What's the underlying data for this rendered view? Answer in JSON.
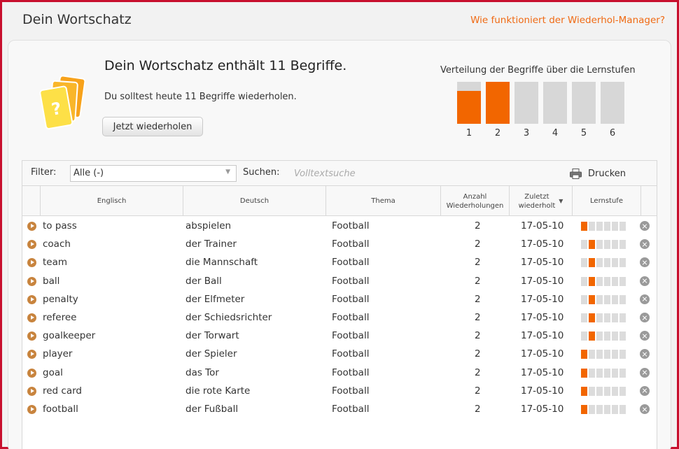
{
  "header": {
    "title": "Dein Wortschatz",
    "help_link": "Wie funktioniert der Wiederhol-Manager?"
  },
  "summary": {
    "headline": "Dein Wortschatz enthält 11 Begriffe.",
    "subline": "Du solltest heute 11 Begriffe wiederholen.",
    "review_button": "Jetzt wiederholen",
    "icon": "question-cards-icon"
  },
  "distribution": {
    "title": "Verteilung der Begriffe über die Lernstufen",
    "stages": [
      "1",
      "2",
      "3",
      "4",
      "5",
      "6"
    ],
    "fill": [
      0.78,
      1.0,
      0,
      0,
      0,
      0
    ],
    "colors": {
      "fill": "#f26600",
      "empty": "#d7d7d7"
    }
  },
  "toolbar": {
    "filter_label": "Filter:",
    "filter_value": "Alle (-)",
    "search_label": "Suchen:",
    "search_placeholder": "Volltextsuche",
    "print_label": "Drucken",
    "print_icon": "printer-icon"
  },
  "table": {
    "headers": {
      "english": "Englisch",
      "german": "Deutsch",
      "topic": "Thema",
      "count_line1": "Anzahl",
      "count_line2": "Wiederholungen",
      "last_line1": "Zuletzt",
      "last_line2": "wiederholt",
      "stage": "Lernstufe"
    },
    "rows": [
      {
        "en": "to pass",
        "de": "abspielen",
        "topic": "Football",
        "count": "2",
        "date": "17-05-10",
        "stage": 1
      },
      {
        "en": "coach",
        "de": "der Trainer",
        "topic": "Football",
        "count": "2",
        "date": "17-05-10",
        "stage": 2
      },
      {
        "en": "team",
        "de": "die Mannschaft",
        "topic": "Football",
        "count": "2",
        "date": "17-05-10",
        "stage": 2
      },
      {
        "en": "ball",
        "de": "der Ball",
        "topic": "Football",
        "count": "2",
        "date": "17-05-10",
        "stage": 2
      },
      {
        "en": "penalty",
        "de": "der Elfmeter",
        "topic": "Football",
        "count": "2",
        "date": "17-05-10",
        "stage": 2
      },
      {
        "en": "referee",
        "de": "der Schiedsrichter",
        "topic": "Football",
        "count": "2",
        "date": "17-05-10",
        "stage": 2
      },
      {
        "en": "goalkeeper",
        "de": "der Torwart",
        "topic": "Football",
        "count": "2",
        "date": "17-05-10",
        "stage": 2
      },
      {
        "en": "player",
        "de": "der Spieler",
        "topic": "Football",
        "count": "2",
        "date": "17-05-10",
        "stage": 1
      },
      {
        "en": "goal",
        "de": "das Tor",
        "topic": "Football",
        "count": "2",
        "date": "17-05-10",
        "stage": 1
      },
      {
        "en": "red card",
        "de": "die rote Karte",
        "topic": "Football",
        "count": "2",
        "date": "17-05-10",
        "stage": 1
      },
      {
        "en": "football",
        "de": "der Fußball",
        "topic": "Football",
        "count": "2",
        "date": "17-05-10",
        "stage": 1
      }
    ],
    "stage_max": 6,
    "row_icons": {
      "play": "play-audio-icon",
      "delete": "delete-icon"
    }
  }
}
